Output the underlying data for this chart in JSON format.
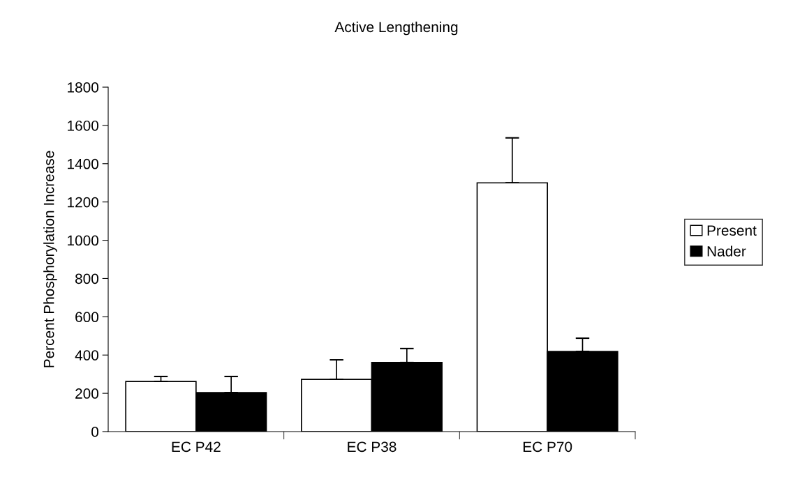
{
  "chart_data": {
    "type": "bar",
    "title": "Active Lengthening",
    "ylabel": "Percent Phosphorylation Increase",
    "categories": [
      "EC P42",
      "EC P38",
      "EC P70"
    ],
    "series": [
      {
        "name": "Present",
        "color": "#ffffff",
        "values": [
          262,
          273,
          1300
        ],
        "errors": [
          [
            262,
            288
          ],
          [
            273,
            375
          ],
          [
            1300,
            1535
          ]
        ]
      },
      {
        "name": "Nader",
        "color": "#000000",
        "values": [
          204,
          361,
          419
        ],
        "errors": [
          [
            204,
            288
          ],
          [
            361,
            434
          ],
          [
            419,
            488
          ]
        ]
      }
    ],
    "ylim": [
      0,
      1800
    ],
    "yticks": [
      0,
      200,
      400,
      600,
      800,
      1000,
      1200,
      1400,
      1600,
      1800
    ],
    "grid": false,
    "legend": "right"
  }
}
